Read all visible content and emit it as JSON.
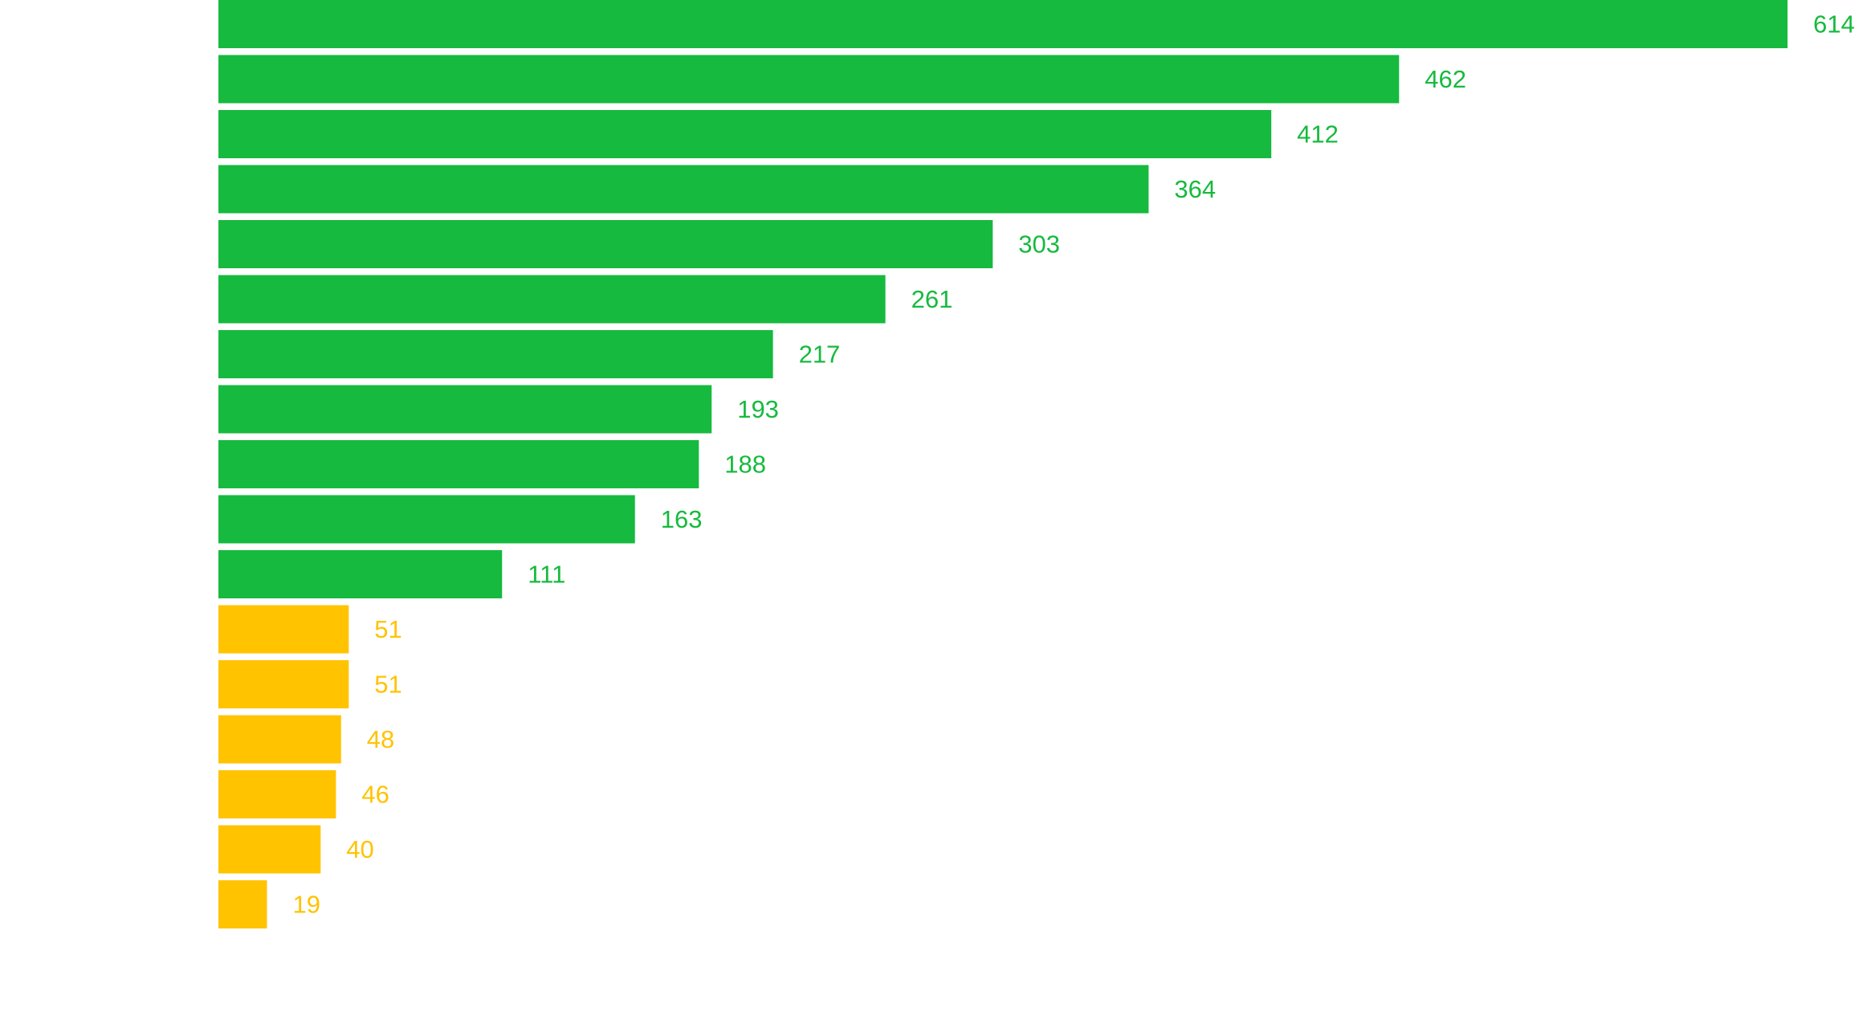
{
  "chart_data": {
    "type": "bar",
    "orientation": "horizontal",
    "title": "",
    "xlabel": "",
    "ylabel": "",
    "grid": false,
    "legend": "none",
    "xlim": [
      0,
      614
    ],
    "values": [
      614,
      462,
      412,
      364,
      303,
      261,
      217,
      193,
      188,
      163,
      111,
      51,
      51,
      48,
      46,
      40,
      19
    ],
    "data_labels": [
      "614",
      "462",
      "412",
      "364",
      "303",
      "261",
      "217",
      "193",
      "188",
      "163",
      "111",
      "51",
      "51",
      "48",
      "46",
      "40",
      "19"
    ],
    "bar_colors": [
      "#16BA3E",
      "#16BA3E",
      "#16BA3E",
      "#16BA3E",
      "#16BA3E",
      "#16BA3E",
      "#16BA3E",
      "#16BA3E",
      "#16BA3E",
      "#16BA3E",
      "#16BA3E",
      "#FFC300",
      "#FFC300",
      "#FFC300",
      "#FFC300",
      "#FFC300",
      "#FFC300"
    ]
  }
}
